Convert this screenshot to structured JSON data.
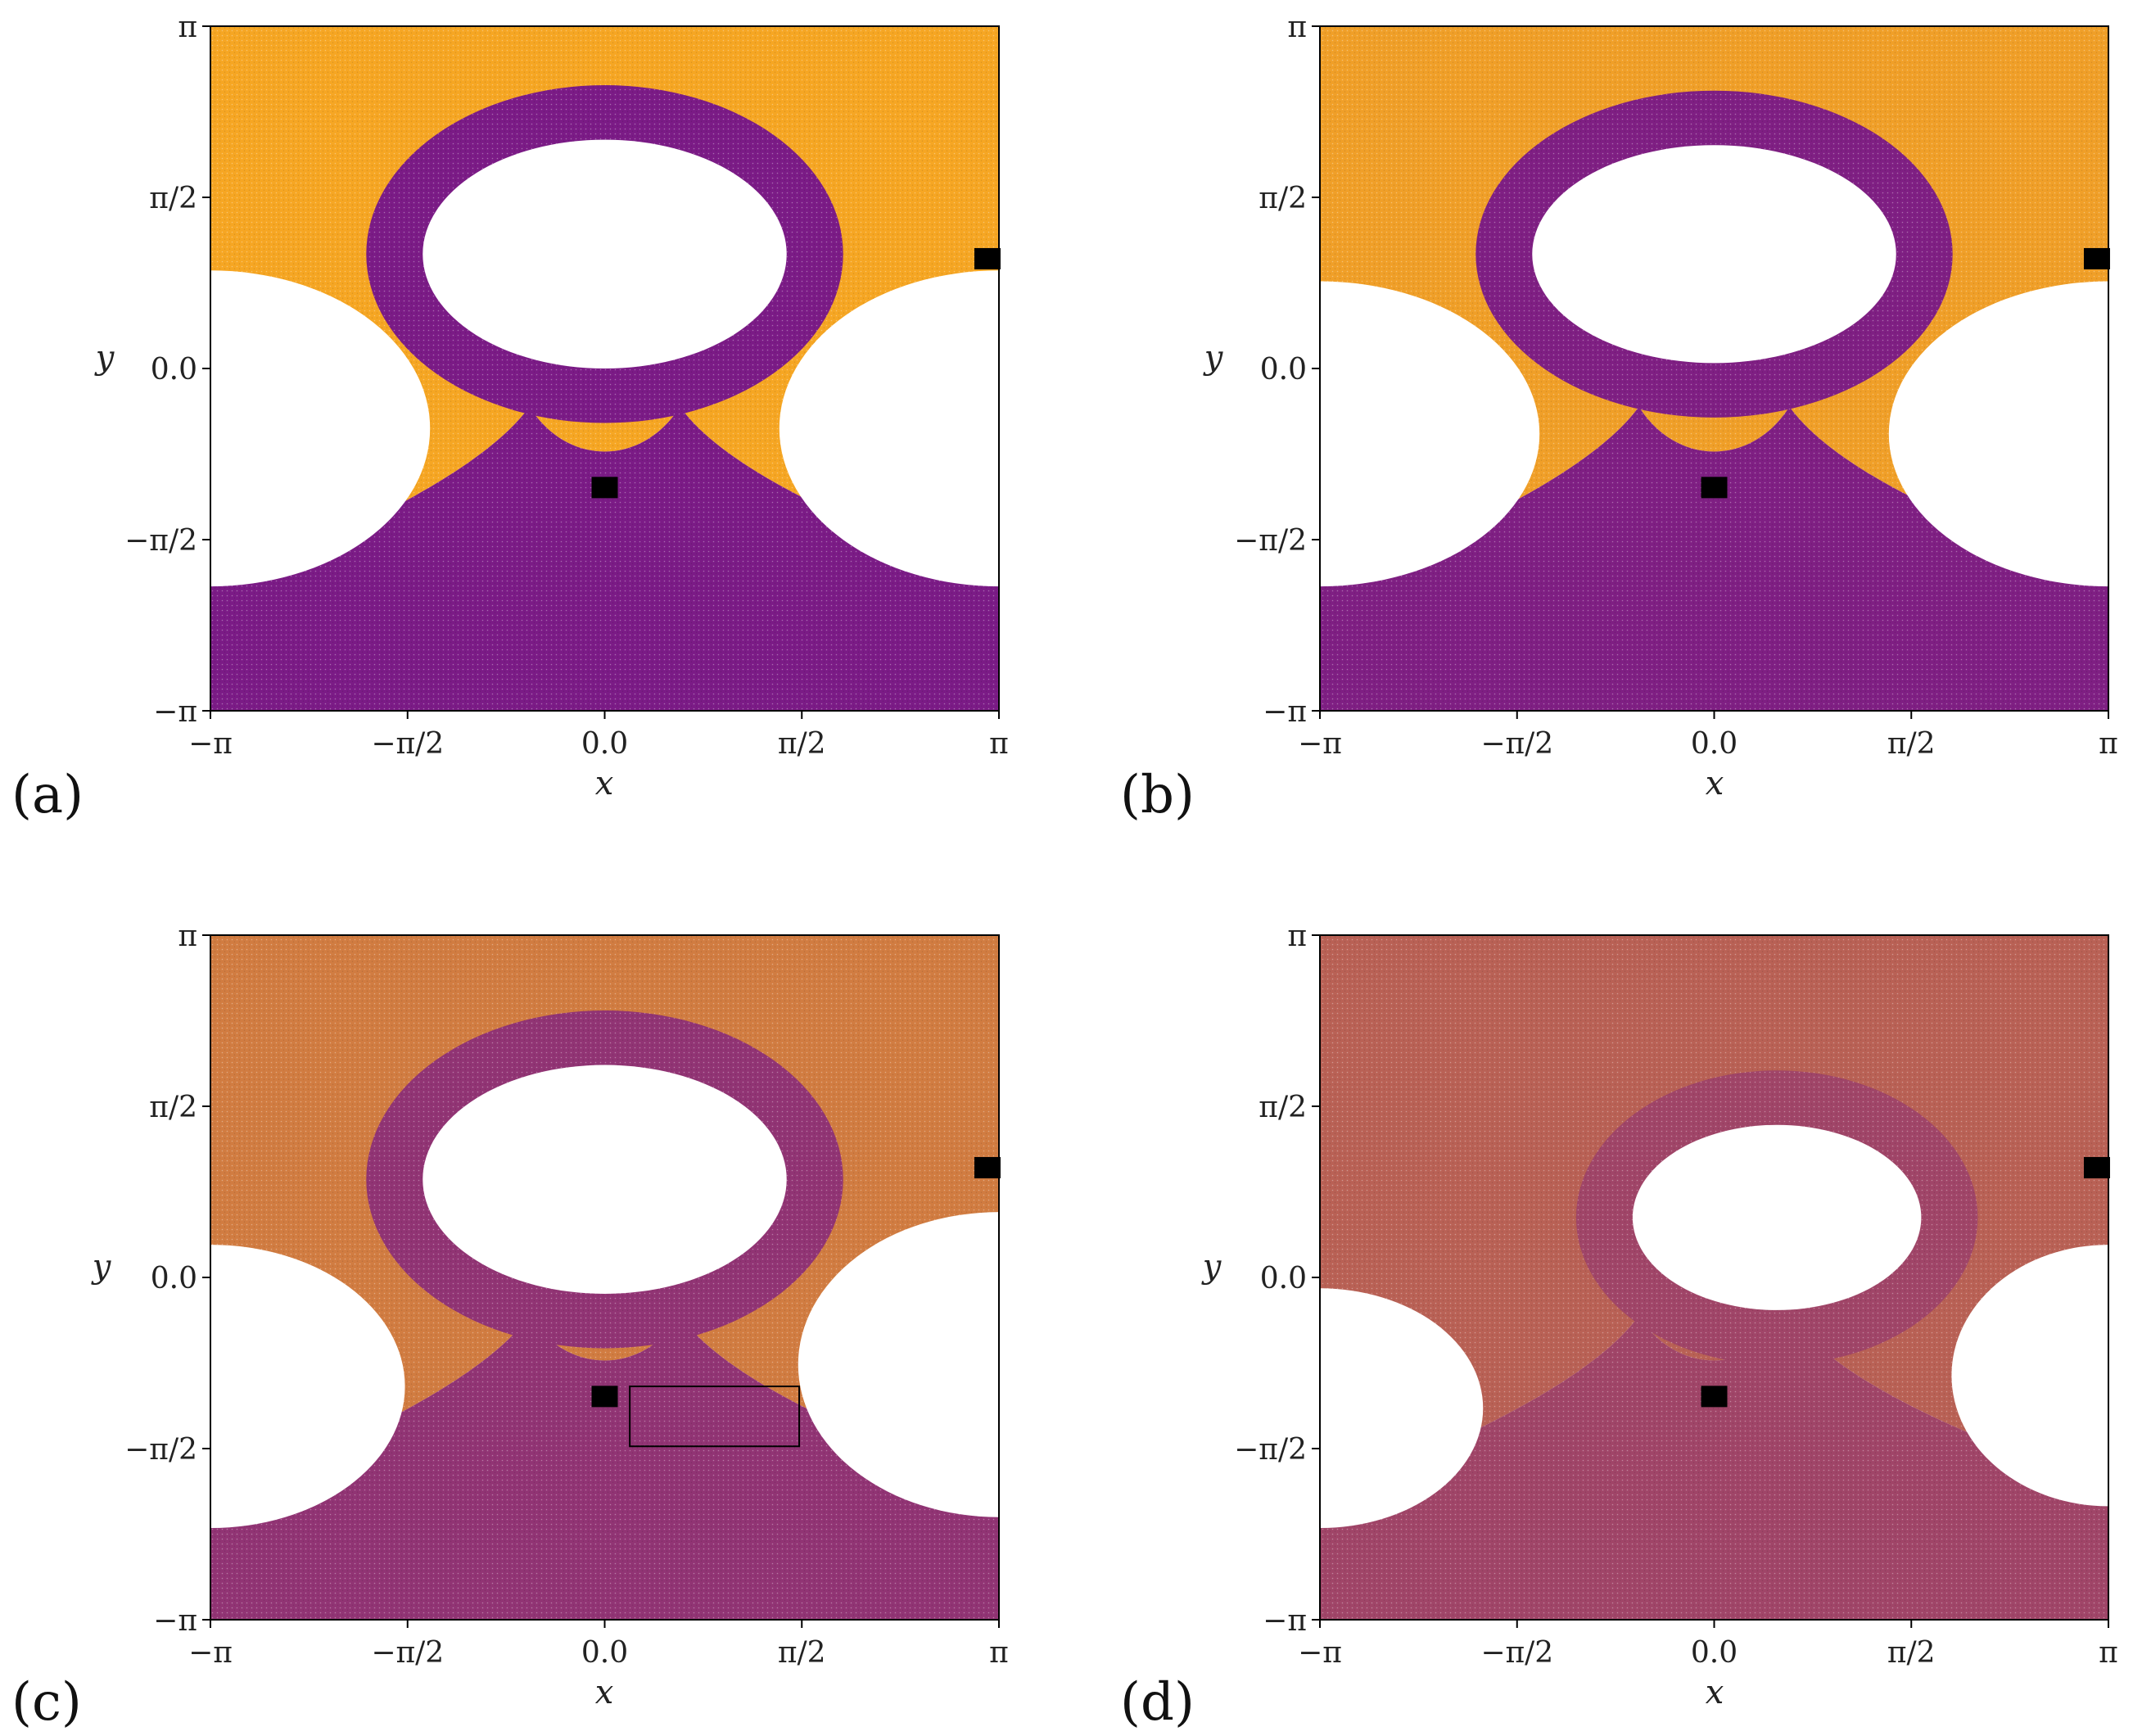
{
  "chart_data": [
    {
      "type": "scatter",
      "panel_label": "(a)",
      "xlabel": "x",
      "ylabel": "y",
      "xlim": [
        -3.14159,
        3.14159
      ],
      "ylim": [
        -3.14159,
        3.14159
      ],
      "x_ticks": [
        {
          "value": -3.14159,
          "label": "−π"
        },
        {
          "value": -1.5708,
          "label": "−π/2"
        },
        {
          "value": 0,
          "label": "0.0"
        },
        {
          "value": 1.5708,
          "label": "π/2"
        },
        {
          "value": 3.14159,
          "label": "π"
        }
      ],
      "y_ticks": [
        {
          "value": -3.14159,
          "label": "−π"
        },
        {
          "value": -1.5708,
          "label": "−π/2"
        },
        {
          "value": 0,
          "label": "0.0"
        },
        {
          "value": 1.5708,
          "label": "π/2"
        },
        {
          "value": 3.14159,
          "label": "π"
        }
      ],
      "colors": {
        "top_region": "#f6a623",
        "bottom_region": "#7b1b86",
        "mixing": 0.0
      },
      "markers": [
        {
          "x": 0.0,
          "y": -1.1
        },
        {
          "x": 3.05,
          "y": 1.0
        }
      ],
      "islands": [
        {
          "cx": 0.0,
          "cy": 1.05,
          "rx": 1.45,
          "ry": 1.05
        },
        {
          "cx": -3.14159,
          "cy": -0.55,
          "rx": 1.75,
          "ry": 1.45
        },
        {
          "cx": 3.14159,
          "cy": -0.55,
          "rx": 1.75,
          "ry": 1.45
        }
      ],
      "zoom_box": null
    },
    {
      "type": "scatter",
      "panel_label": "(b)",
      "xlabel": "x",
      "ylabel": "y",
      "xlim": [
        -3.14159,
        3.14159
      ],
      "ylim": [
        -3.14159,
        3.14159
      ],
      "x_ticks": [
        {
          "value": -3.14159,
          "label": "−π"
        },
        {
          "value": -1.5708,
          "label": "−π/2"
        },
        {
          "value": 0,
          "label": "0.0"
        },
        {
          "value": 1.5708,
          "label": "π/2"
        },
        {
          "value": 3.14159,
          "label": "π"
        }
      ],
      "y_ticks": [
        {
          "value": -3.14159,
          "label": "−π"
        },
        {
          "value": -1.5708,
          "label": "−π/2"
        },
        {
          "value": 0,
          "label": "0.0"
        },
        {
          "value": 1.5708,
          "label": "π/2"
        },
        {
          "value": 3.14159,
          "label": "π"
        }
      ],
      "colors": {
        "top_region": "#f6a623",
        "bottom_region": "#7b1b86",
        "mixing": 0.05
      },
      "markers": [
        {
          "x": 0.0,
          "y": -1.1
        },
        {
          "x": 3.05,
          "y": 1.0
        }
      ],
      "islands": [
        {
          "cx": 0.0,
          "cy": 1.05,
          "rx": 1.45,
          "ry": 1.0
        },
        {
          "cx": -3.14159,
          "cy": -0.6,
          "rx": 1.75,
          "ry": 1.4
        },
        {
          "cx": 3.14159,
          "cy": -0.6,
          "rx": 1.75,
          "ry": 1.4
        }
      ],
      "zoom_box": null
    },
    {
      "type": "scatter",
      "panel_label": "(c)",
      "xlabel": "x",
      "ylabel": "y",
      "xlim": [
        -3.14159,
        3.14159
      ],
      "ylim": [
        -3.14159,
        3.14159
      ],
      "x_ticks": [
        {
          "value": -3.14159,
          "label": "−π"
        },
        {
          "value": -1.5708,
          "label": "−π/2"
        },
        {
          "value": 0,
          "label": "0.0"
        },
        {
          "value": 1.5708,
          "label": "π/2"
        },
        {
          "value": 3.14159,
          "label": "π"
        }
      ],
      "y_ticks": [
        {
          "value": -3.14159,
          "label": "−π"
        },
        {
          "value": -1.5708,
          "label": "−π/2"
        },
        {
          "value": 0,
          "label": "0.0"
        },
        {
          "value": 1.5708,
          "label": "π/2"
        },
        {
          "value": 3.14159,
          "label": "π"
        }
      ],
      "colors": {
        "top_region": "#f6a623",
        "bottom_region": "#7b1b86",
        "mixing": 0.3
      },
      "markers": [
        {
          "x": 0.0,
          "y": -1.1
        },
        {
          "x": 3.05,
          "y": 1.0
        }
      ],
      "islands": [
        {
          "cx": 0.0,
          "cy": 0.9,
          "rx": 1.45,
          "ry": 1.05
        },
        {
          "cx": -3.14159,
          "cy": -1.0,
          "rx": 1.55,
          "ry": 1.3
        },
        {
          "cx": 3.14159,
          "cy": -0.8,
          "rx": 1.6,
          "ry": 1.4
        }
      ],
      "zoom_box": {
        "x0": 0.2,
        "x1": 1.55,
        "y0": -1.55,
        "y1": -1.0
      }
    },
    {
      "type": "scatter",
      "panel_label": "(d)",
      "xlabel": "x",
      "ylabel": "y",
      "xlim": [
        -3.14159,
        3.14159
      ],
      "ylim": [
        -3.14159,
        3.14159
      ],
      "x_ticks": [
        {
          "value": -3.14159,
          "label": "−π"
        },
        {
          "value": -1.5708,
          "label": "−π/2"
        },
        {
          "value": 0,
          "label": "0.0"
        },
        {
          "value": 1.5708,
          "label": "π/2"
        },
        {
          "value": 3.14159,
          "label": "π"
        }
      ],
      "y_ticks": [
        {
          "value": -3.14159,
          "label": "−π"
        },
        {
          "value": -1.5708,
          "label": "−π/2"
        },
        {
          "value": 0,
          "label": "0.0"
        },
        {
          "value": 1.5708,
          "label": "π/2"
        },
        {
          "value": 3.14159,
          "label": "π"
        }
      ],
      "colors": {
        "top_region": "#f6a623",
        "bottom_region": "#7b1b86",
        "mixing": 0.5
      },
      "markers": [
        {
          "x": 0.0,
          "y": -1.1
        },
        {
          "x": 3.05,
          "y": 1.0
        }
      ],
      "islands": [
        {
          "cx": 0.5,
          "cy": 0.55,
          "rx": 1.15,
          "ry": 0.85
        },
        {
          "cx": -3.14159,
          "cy": -1.2,
          "rx": 1.3,
          "ry": 1.1
        },
        {
          "cx": 3.14159,
          "cy": -0.9,
          "rx": 1.25,
          "ry": 1.2
        }
      ],
      "zoom_box": null
    }
  ]
}
